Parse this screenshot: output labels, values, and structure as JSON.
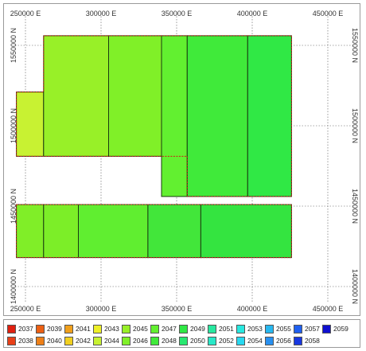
{
  "map": {
    "x_labels": [
      "250000 E",
      "300000 E",
      "350000 E",
      "400000 E",
      "450000 E"
    ],
    "y_labels": [
      "1550000 N",
      "1500000 N",
      "1450000 N",
      "1400000 N"
    ],
    "blocks": [
      {
        "year": 2044,
        "color": "#c8f232",
        "x0": 244000,
        "x1": 262000,
        "y0": 1481000,
        "y1": 1521000
      },
      {
        "year": 2045,
        "color": "#98f028",
        "x0": 262000,
        "x1": 305000,
        "y0": 1481000,
        "y1": 1556000
      },
      {
        "year": 2046,
        "color": "#80f028",
        "x0": 305000,
        "x1": 340000,
        "y0": 1481000,
        "y1": 1556000
      },
      {
        "year": 2047,
        "color": "#62f030",
        "x0": 340000,
        "x1": 357000,
        "y0": 1456000,
        "y1": 1556000
      },
      {
        "year": 2048,
        "color": "#40ea3a",
        "x0": 357000,
        "x1": 397000,
        "y0": 1456000,
        "y1": 1556000
      },
      {
        "year": 2049,
        "color": "#30e845",
        "x0": 397000,
        "x1": 426000,
        "y0": 1456000,
        "y1": 1556000
      },
      {
        "year": 2046,
        "color": "#80ee28",
        "x0": 244000,
        "x1": 262000,
        "y0": 1418000,
        "y1": 1451000
      },
      {
        "year": 2046,
        "color": "#7cee28",
        "x0": 262000,
        "x1": 285000,
        "y0": 1418000,
        "y1": 1451000
      },
      {
        "year": 2047,
        "color": "#60ee30",
        "x0": 285000,
        "x1": 331000,
        "y0": 1418000,
        "y1": 1451000
      },
      {
        "year": 2048,
        "color": "#42e63a",
        "x0": 331000,
        "x1": 366000,
        "y0": 1418000,
        "y1": 1451000
      },
      {
        "year": 2049,
        "color": "#34e440",
        "x0": 366000,
        "x1": 426000,
        "y0": 1418000,
        "y1": 1451000
      }
    ]
  },
  "legend": {
    "items": [
      {
        "year": "2037",
        "color": "#e02010"
      },
      {
        "year": "2039",
        "color": "#ec6014"
      },
      {
        "year": "2041",
        "color": "#f0a01c"
      },
      {
        "year": "2043",
        "color": "#eef028"
      },
      {
        "year": "2045",
        "color": "#98f028"
      },
      {
        "year": "2047",
        "color": "#62f030"
      },
      {
        "year": "2049",
        "color": "#30e845"
      },
      {
        "year": "2051",
        "color": "#28e8a0"
      },
      {
        "year": "2053",
        "color": "#28e8e0"
      },
      {
        "year": "2055",
        "color": "#28b8f0"
      },
      {
        "year": "2057",
        "color": "#2060f0"
      },
      {
        "year": "2059",
        "color": "#1010d0"
      },
      {
        "year": "2038",
        "color": "#e84018"
      },
      {
        "year": "2040",
        "color": "#ee8018"
      },
      {
        "year": "2042",
        "color": "#f2d020"
      },
      {
        "year": "2044",
        "color": "#c8f232"
      },
      {
        "year": "2046",
        "color": "#80f028"
      },
      {
        "year": "2048",
        "color": "#40ea3a"
      },
      {
        "year": "2050",
        "color": "#28e870"
      },
      {
        "year": "2052",
        "color": "#28e8c8"
      },
      {
        "year": "2054",
        "color": "#28d8f0"
      },
      {
        "year": "2056",
        "color": "#2890f0"
      },
      {
        "year": "2058",
        "color": "#1838e0"
      }
    ]
  }
}
